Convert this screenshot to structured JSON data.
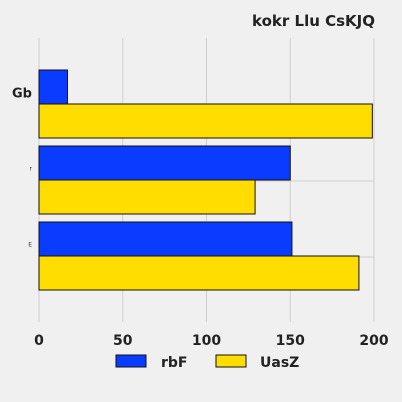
{
  "chart_data": {
    "type": "bar",
    "orientation": "horizontal",
    "title": "kokr Llu CsKJQ",
    "xlabel": "",
    "ylabel": "",
    "categories": [
      "Gb",
      "r",
      "E"
    ],
    "series": [
      {
        "name": "rbF",
        "values": [
          17,
          150,
          151
        ],
        "color": "#0a3cff"
      },
      {
        "name": "UasZ",
        "values": [
          199,
          129,
          191
        ],
        "color": "#ffdd00"
      }
    ],
    "xlim": [
      0,
      200
    ],
    "xticks": [
      "0",
      "50",
      "100",
      "150",
      "200"
    ],
    "grid": true,
    "legend_position": "bottom"
  }
}
